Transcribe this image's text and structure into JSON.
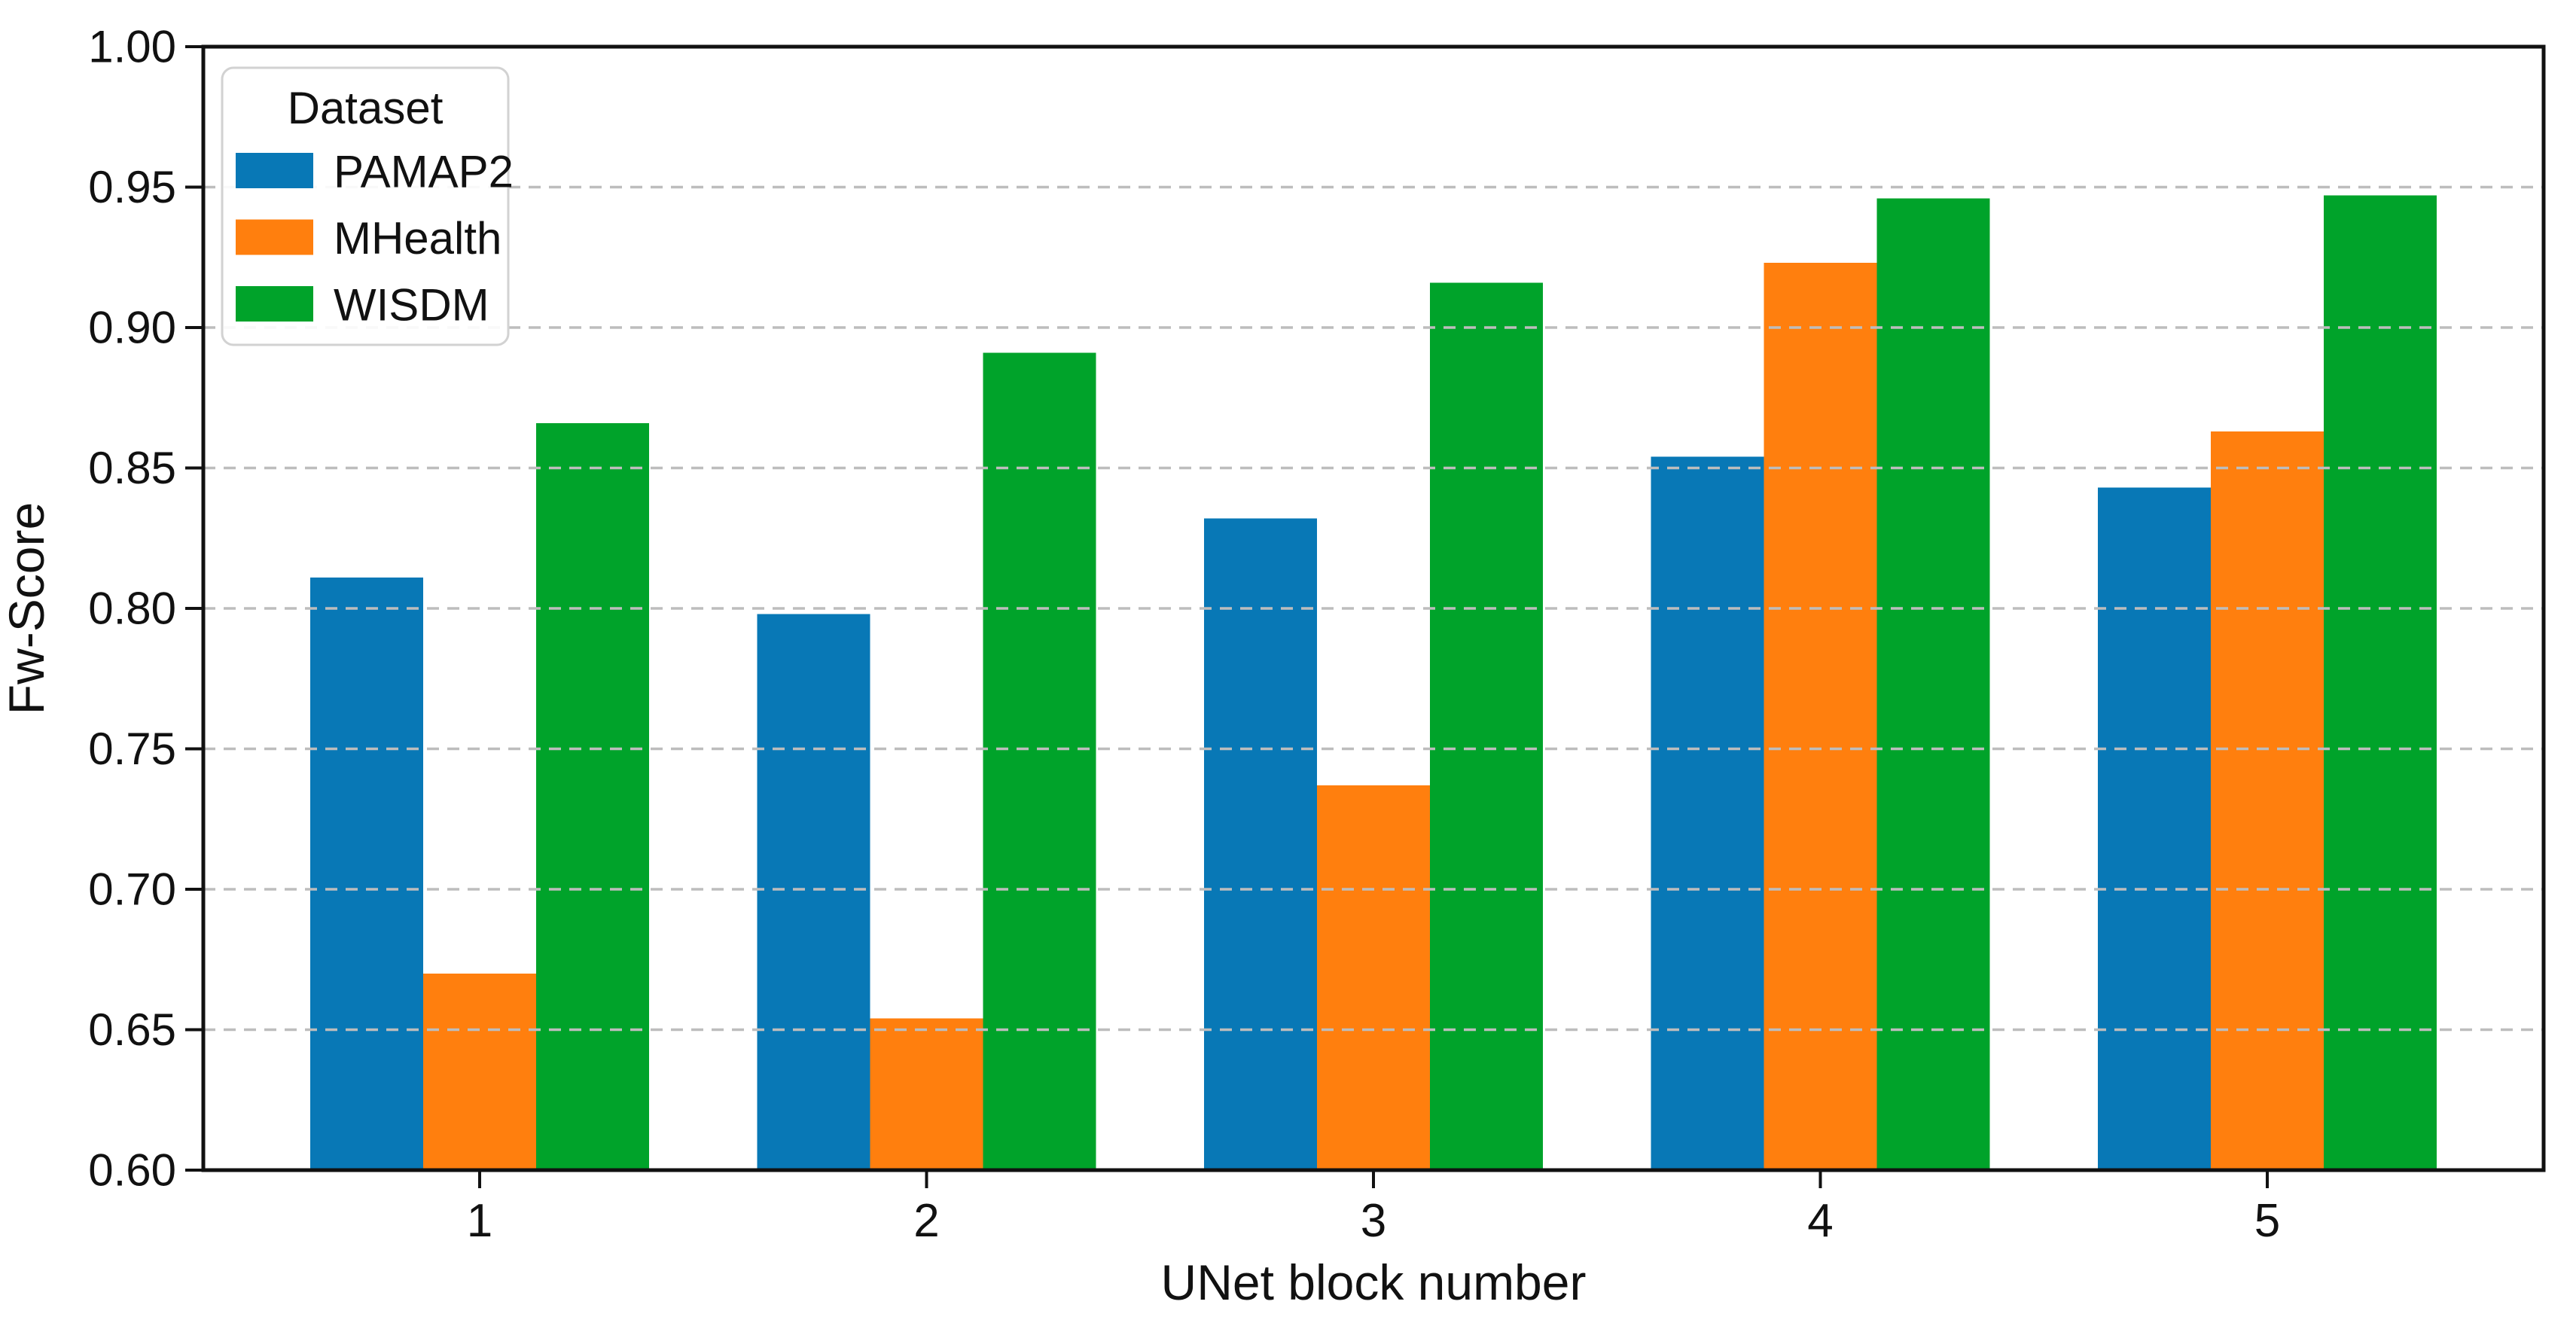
{
  "figure": {
    "background": "#ffffff",
    "text_color": "#111111",
    "axis_color": "#111111"
  },
  "chart_data": {
    "type": "bar",
    "title": "",
    "xlabel": "UNet block number",
    "ylabel": "Fw-Score",
    "categories": [
      "1",
      "2",
      "3",
      "4",
      "5"
    ],
    "series": [
      {
        "name": "PAMAP2",
        "color": "#0878b6",
        "values": [
          0.811,
          0.798,
          0.832,
          0.854,
          0.843
        ]
      },
      {
        "name": "MHealth",
        "color": "#ff7f0e",
        "values": [
          0.67,
          0.654,
          0.737,
          0.923,
          0.863
        ]
      },
      {
        "name": "WISDM",
        "color": "#00a32a",
        "values": [
          0.866,
          0.891,
          0.916,
          0.946,
          0.947
        ]
      }
    ],
    "ylim": [
      0.6,
      1.0
    ],
    "yticks": [
      "0.60",
      "0.65",
      "0.70",
      "0.75",
      "0.80",
      "0.85",
      "0.90",
      "0.95",
      "1.00"
    ],
    "legend": {
      "title": "Dataset",
      "position": "upper left"
    },
    "grid": {
      "axis": "y",
      "style": "dashed",
      "color": "#bdbdbd",
      "on_top": true
    }
  }
}
